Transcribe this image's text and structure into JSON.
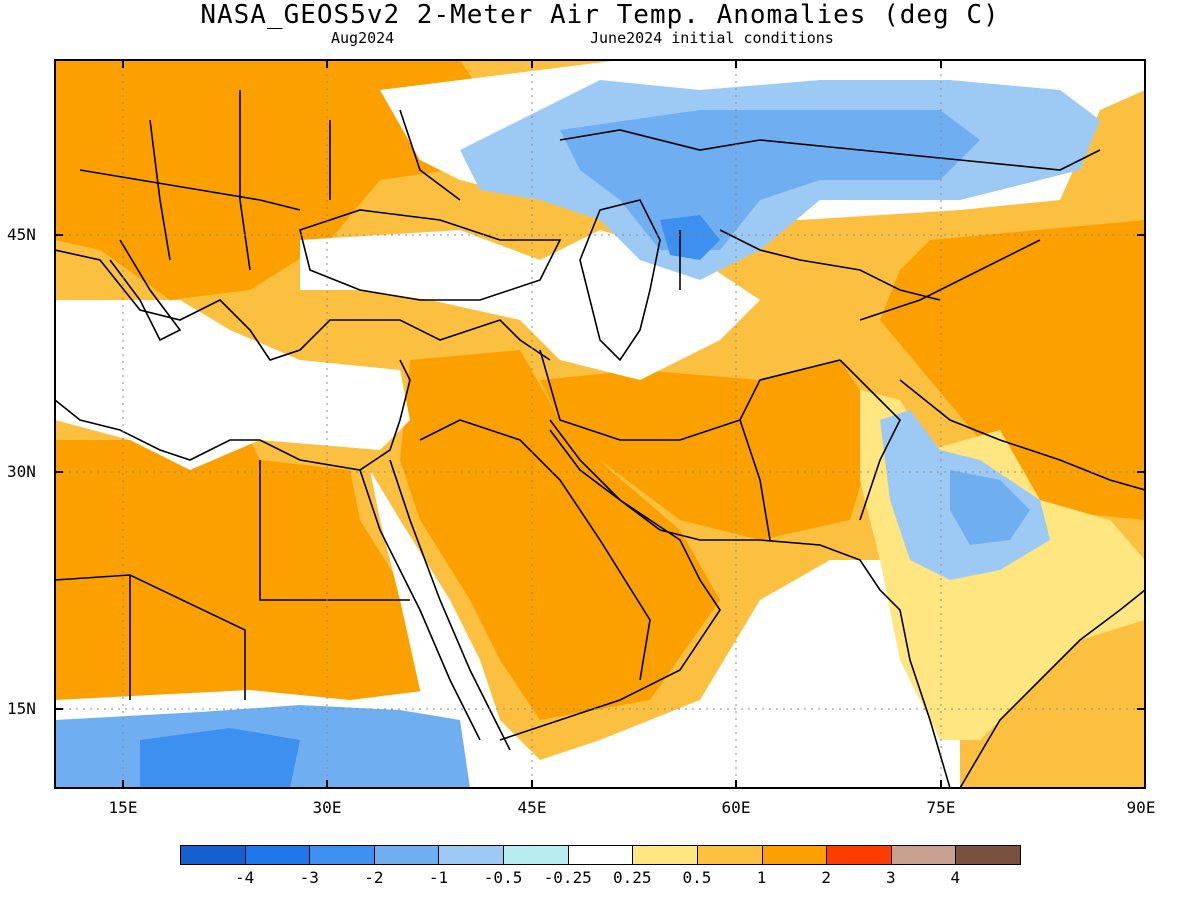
{
  "header": {
    "title": "NASA_GEOS5v2 2-Meter Air Temp. Anomalies (deg C)",
    "valid_month": "Aug2024",
    "init": "June2024 initial conditions"
  },
  "map": {
    "lat_labels": [
      "45N",
      "30N",
      "15N"
    ],
    "lon_labels": [
      "15E",
      "30E",
      "45E",
      "60E",
      "75E",
      "90E"
    ]
  },
  "colorbar": {
    "labels": [
      "-4",
      "-3",
      "-2",
      "-1",
      "-0.5",
      "-0.25",
      "0.25",
      "0.5",
      "1",
      "2",
      "3",
      "4"
    ],
    "colors": [
      "#1560d0",
      "#1f76e8",
      "#3d8ff0",
      "#70aef2",
      "#9ccaf5",
      "#b7ecf2",
      "#ffffff",
      "#ffe680",
      "#fcc040",
      "#fca000",
      "#ff3c00",
      "#c8a090",
      "#7a5040"
    ]
  }
}
